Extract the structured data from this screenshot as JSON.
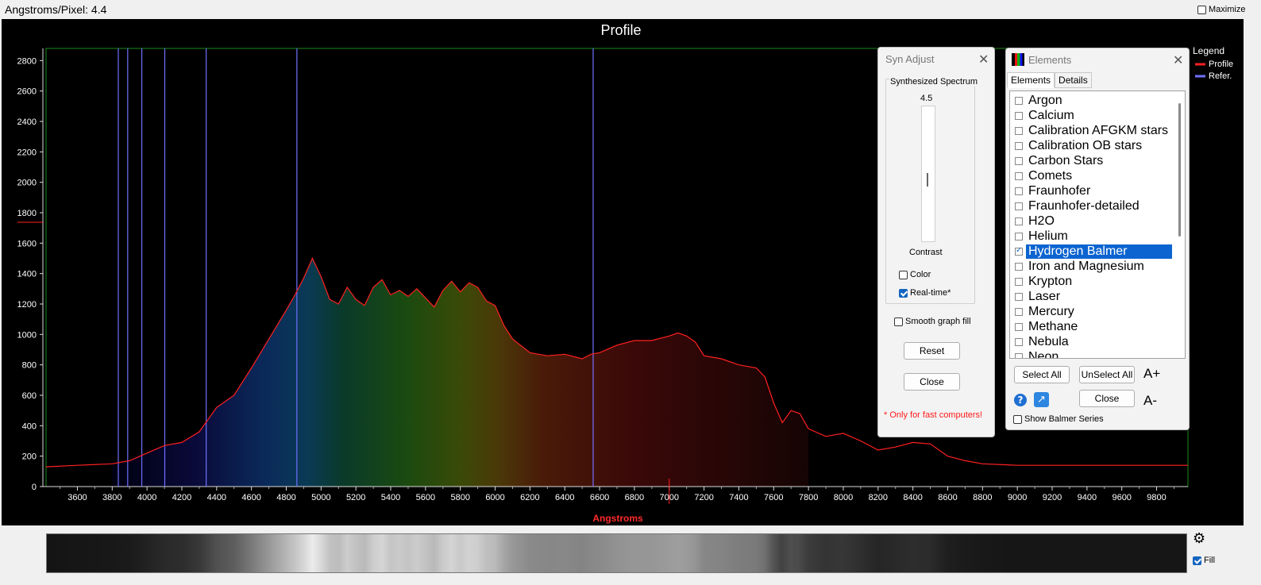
{
  "app": {
    "title": "Angstroms/Pixel: 4.4",
    "maximize_label": "Maximize"
  },
  "chart_data": {
    "type": "line",
    "title": "Profile",
    "xlabel": "Angstroms",
    "ylabel": "",
    "xlim": [
      3420,
      9980
    ],
    "ylim": [
      0,
      2880
    ],
    "xticks": [
      3600,
      3800,
      4000,
      4200,
      4400,
      4600,
      4800,
      5000,
      5200,
      5400,
      5600,
      5800,
      6000,
      6200,
      6400,
      6600,
      6800,
      7000,
      7200,
      7400,
      7600,
      7800,
      8000,
      8200,
      8400,
      8600,
      8800,
      9000,
      9200,
      9400,
      9600,
      9800
    ],
    "yticks": [
      0,
      200,
      400,
      600,
      800,
      1000,
      1200,
      1400,
      1600,
      1800,
      2000,
      2200,
      2400,
      2600,
      2800
    ],
    "legend_title": "Legend",
    "legend_position": "top-right",
    "series": [
      {
        "name": "Profile",
        "color": "#ff2020",
        "x": [
          3420,
          3600,
          3800,
          3900,
          4000,
          4100,
          4200,
          4300,
          4350,
          4400,
          4500,
          4600,
          4700,
          4800,
          4850,
          4900,
          4950,
          5000,
          5050,
          5100,
          5150,
          5200,
          5250,
          5300,
          5350,
          5400,
          5450,
          5500,
          5550,
          5600,
          5650,
          5700,
          5750,
          5800,
          5850,
          5900,
          5950,
          6000,
          6050,
          6100,
          6200,
          6300,
          6400,
          6500,
          6550,
          6600,
          6700,
          6800,
          6900,
          7000,
          7050,
          7100,
          7150,
          7200,
          7300,
          7400,
          7500,
          7550,
          7600,
          7650,
          7700,
          7750,
          7800,
          7900,
          8000,
          8100,
          8200,
          8300,
          8400,
          8500,
          8600,
          8700,
          8800,
          9000,
          9200,
          9400,
          9600,
          9800,
          9980
        ],
        "y": [
          130,
          140,
          150,
          170,
          220,
          270,
          290,
          360,
          440,
          520,
          600,
          780,
          970,
          1160,
          1260,
          1370,
          1500,
          1380,
          1230,
          1200,
          1310,
          1230,
          1190,
          1310,
          1360,
          1260,
          1290,
          1250,
          1300,
          1240,
          1180,
          1290,
          1350,
          1280,
          1340,
          1310,
          1220,
          1190,
          1060,
          970,
          880,
          860,
          870,
          840,
          870,
          880,
          930,
          960,
          960,
          990,
          1010,
          990,
          950,
          860,
          840,
          800,
          780,
          720,
          550,
          420,
          500,
          480,
          380,
          330,
          350,
          300,
          240,
          260,
          290,
          280,
          200,
          170,
          150,
          140,
          140,
          140,
          140,
          140,
          140
        ]
      }
    ],
    "reference": {
      "name": "Refer.",
      "color": "#7070ff",
      "x": [
        3835,
        3889,
        3970,
        4102,
        4340,
        4861,
        6563
      ]
    }
  },
  "syn_adjust": {
    "title": "Syn Adjust",
    "group_label": "Synthesized Spectrum",
    "slider_value": "4.5",
    "slider_label": "Contrast",
    "color_label": "Color",
    "color_checked": false,
    "realtime_label": "Real-time*",
    "realtime_checked": true,
    "smooth_label": "Smooth graph fill",
    "smooth_checked": false,
    "reset_label": "Reset",
    "close_label": "Close",
    "note": "* Only for fast computers!"
  },
  "elements": {
    "title": "Elements",
    "tabs": [
      {
        "label": "Elements",
        "active": true
      },
      {
        "label": "Details",
        "active": false
      }
    ],
    "items": [
      {
        "label": "Argon",
        "checked": false
      },
      {
        "label": "Calcium",
        "checked": false
      },
      {
        "label": "Calibration AFGKM stars",
        "checked": false
      },
      {
        "label": "Calibration OB stars",
        "checked": false
      },
      {
        "label": "Carbon Stars",
        "checked": false
      },
      {
        "label": "Comets",
        "checked": false
      },
      {
        "label": "Fraunhofer",
        "checked": false
      },
      {
        "label": "Fraunhofer-detailed",
        "checked": false
      },
      {
        "label": "H2O",
        "checked": false
      },
      {
        "label": "Helium",
        "checked": false
      },
      {
        "label": "Hydrogen Balmer",
        "checked": true
      },
      {
        "label": "Iron and Magnesium",
        "checked": false
      },
      {
        "label": "Krypton",
        "checked": false
      },
      {
        "label": "Laser",
        "checked": false
      },
      {
        "label": "Mercury",
        "checked": false
      },
      {
        "label": "Methane",
        "checked": false
      },
      {
        "label": "Nebula",
        "checked": false
      },
      {
        "label": "Neon",
        "checked": false
      }
    ],
    "select_all_label": "Select All",
    "unselect_all_label": "UnSelect All",
    "font_up_label": "A+",
    "font_down_label": "A-",
    "close_label": "Close",
    "show_balmer_label": "Show Balmer Series",
    "show_balmer_checked": false
  },
  "strip": {
    "fill_label": "Fill",
    "fill_checked": true
  }
}
